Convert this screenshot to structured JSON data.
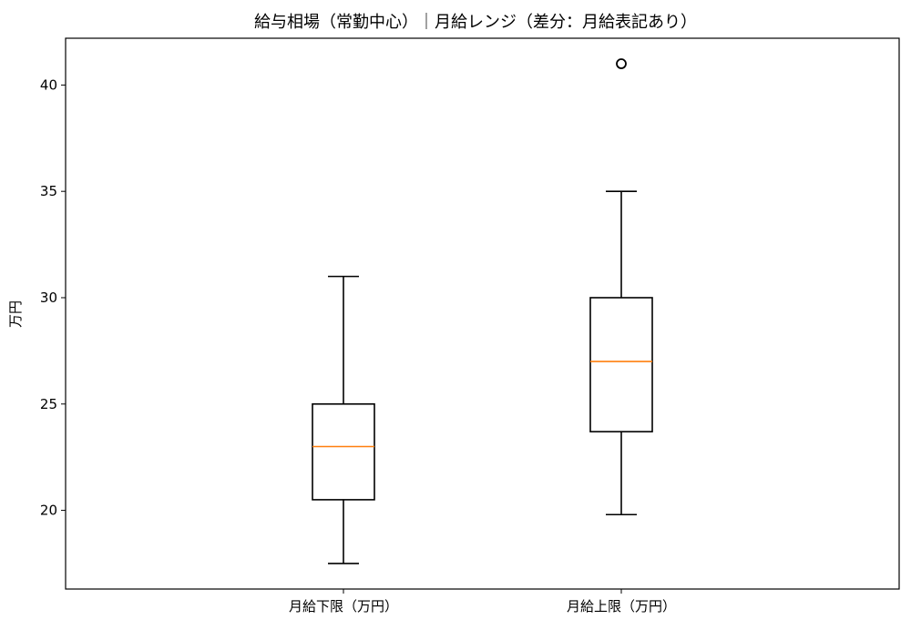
{
  "chart_data": {
    "type": "box",
    "title": "給与相場（常勤中心）｜月給レンジ（差分：月給表記あり）",
    "xlabel": "",
    "ylabel": "万円",
    "ylim": [
      16.3,
      42.2
    ],
    "yticks": [
      20,
      25,
      30,
      35,
      40
    ],
    "grid": false,
    "categories": [
      "月給下限（万円）",
      "月給上限（万円）"
    ],
    "boxes": [
      {
        "category": "月給下限（万円）",
        "whisker_low": 17.5,
        "q1": 20.5,
        "median": 23.0,
        "q3": 25.0,
        "whisker_high": 31.0,
        "outliers": []
      },
      {
        "category": "月給上限（万円）",
        "whisker_low": 19.8,
        "q1": 23.7,
        "median": 27.0,
        "q3": 30.0,
        "whisker_high": 35.0,
        "outliers": [
          41.0
        ]
      }
    ],
    "colors": {
      "box": "#000000",
      "median": "#ff7f0e",
      "outlier": "#000000"
    }
  }
}
